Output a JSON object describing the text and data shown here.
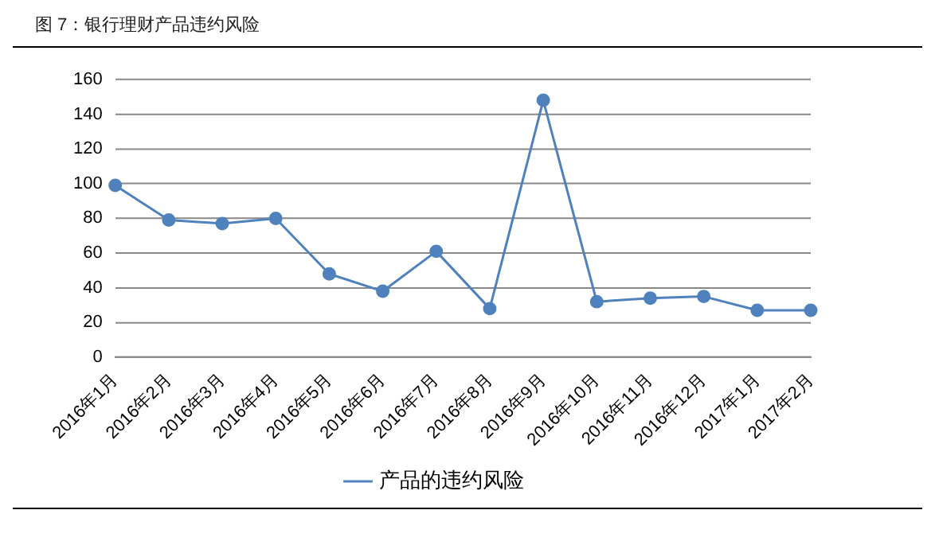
{
  "chart_data": {
    "type": "line",
    "title": "图 7：银行理财产品违约风险",
    "categories": [
      "2016年1月",
      "2016年2月",
      "2016年3月",
      "2016年4月",
      "2016年5月",
      "2016年6月",
      "2016年7月",
      "2016年8月",
      "2016年9月",
      "2016年10月",
      "2016年11月",
      "2016年12月",
      "2017年1月",
      "2017年2月"
    ],
    "series": [
      {
        "name": "产品的违约风险",
        "color": "#4f81bd",
        "values": [
          99,
          79,
          77,
          80,
          48,
          38,
          61,
          28,
          148,
          32,
          34,
          35,
          27,
          27
        ]
      }
    ],
    "ylim": [
      0,
      160
    ],
    "yticks": [
      0,
      20,
      40,
      60,
      80,
      100,
      120,
      140,
      160
    ],
    "grid": "y",
    "legend": "bottom",
    "marker": "circle",
    "line_style": "solid"
  }
}
